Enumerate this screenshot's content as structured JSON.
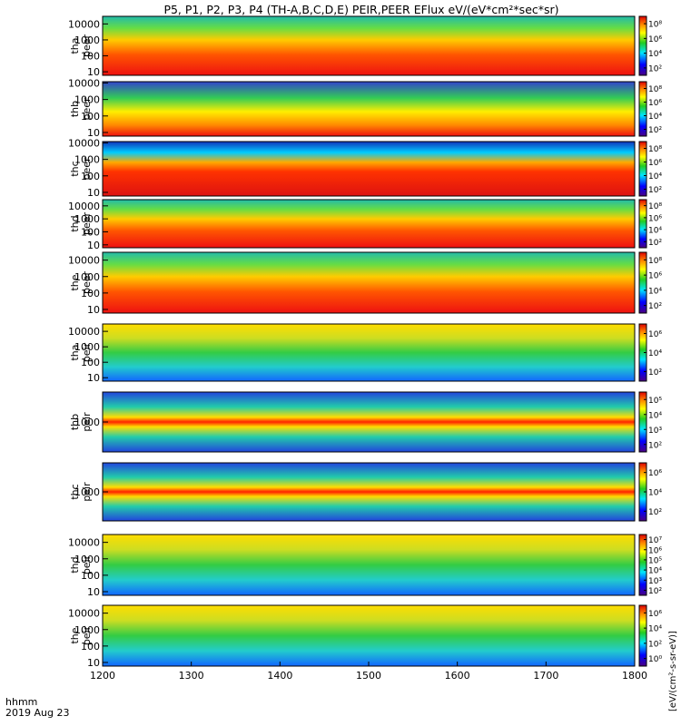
{
  "chart_data": {
    "type": "heatmap",
    "title": "P5, P1, P2, P3, P4 (TH-A,B,C,D,E) PEIR,PEER EFlux eV/(eV*cm²*sec*sr)",
    "x_axis": {
      "range": [
        1200,
        1800
      ],
      "ticks": [
        "1200",
        "1300",
        "1400",
        "1500",
        "1600",
        "1700",
        "1800"
      ],
      "label_line1": "hhmm",
      "label_line2": "2019 Aug 23"
    },
    "colorbar_unit_label": "[eV/(cm²-s-sr-eV)]",
    "panels": [
      {
        "probe": "tha",
        "species": "peer",
        "ylabel_1": "tha",
        "ylabel_2": "peer",
        "y_log": true,
        "y_range": [
          6,
          30000
        ],
        "y_ticks": [
          "10",
          "100",
          "1000",
          "10000"
        ],
        "colorbar_ticks": [
          "10²",
          "10⁴",
          "10⁶",
          "10⁸"
        ]
      },
      {
        "probe": "thb",
        "species": "peer",
        "ylabel_1": "thb",
        "ylabel_2": "peer",
        "y_log": true,
        "y_range": [
          6,
          12000
        ],
        "y_ticks": [
          "10",
          "100",
          "1000",
          "10000"
        ],
        "colorbar_ticks": [
          "10²",
          "10⁴",
          "10⁶",
          "10⁸"
        ]
      },
      {
        "probe": "thc",
        "species": "peer",
        "ylabel_1": "thc",
        "ylabel_2": "peer",
        "y_log": true,
        "y_range": [
          6,
          12000
        ],
        "y_ticks": [
          "10",
          "100",
          "1000",
          "10000"
        ],
        "colorbar_ticks": [
          "10²",
          "10⁴",
          "10⁶",
          "10⁸"
        ]
      },
      {
        "probe": "thd",
        "species": "peer",
        "ylabel_1": "thd",
        "ylabel_2": "peer",
        "y_log": true,
        "y_range": [
          6,
          30000
        ],
        "y_ticks": [
          "10",
          "100",
          "1000",
          "10000"
        ],
        "colorbar_ticks": [
          "10²",
          "10⁴",
          "10⁶",
          "10⁸"
        ]
      },
      {
        "probe": "the",
        "species": "peer",
        "ylabel_1": "the",
        "ylabel_2": "peer",
        "y_log": true,
        "y_range": [
          6,
          30000
        ],
        "y_ticks": [
          "10",
          "100",
          "1000",
          "10000"
        ],
        "colorbar_ticks": [
          "10²",
          "10⁴",
          "10⁶",
          "10⁸"
        ]
      },
      {
        "probe": "tha",
        "species": "peir",
        "ylabel_1": "tha",
        "ylabel_2": "peir",
        "y_log": true,
        "y_range": [
          6,
          30000
        ],
        "y_ticks": [
          "10",
          "100",
          "1000",
          "10000"
        ],
        "colorbar_ticks": [
          "10²",
          "10⁴",
          "10⁶"
        ]
      },
      {
        "probe": "thb",
        "species": "peir",
        "ylabel_1": "thb",
        "ylabel_2": "peir",
        "y_log": true,
        "y_range": [
          250,
          4000
        ],
        "y_ticks": [
          "1000"
        ],
        "colorbar_ticks": [
          "10²",
          "10³",
          "10⁴",
          "10⁵"
        ]
      },
      {
        "probe": "thc",
        "species": "peir",
        "ylabel_1": "thc",
        "ylabel_2": "peir",
        "y_log": true,
        "y_range": [
          250,
          4000
        ],
        "y_ticks": [
          "1000"
        ],
        "colorbar_ticks": [
          "10²",
          "10⁴",
          "10⁶"
        ]
      },
      {
        "probe": "thd",
        "species": "peir",
        "ylabel_1": "thd",
        "ylabel_2": "peir",
        "y_log": true,
        "y_range": [
          6,
          30000
        ],
        "y_ticks": [
          "10",
          "100",
          "1000",
          "10000"
        ],
        "colorbar_ticks": [
          "10²",
          "10³",
          "10⁴",
          "10⁵",
          "10⁶",
          "10⁷"
        ]
      },
      {
        "probe": "the",
        "species": "peir",
        "ylabel_1": "the",
        "ylabel_2": "peir",
        "y_log": true,
        "y_range": [
          6,
          30000
        ],
        "y_ticks": [
          "10",
          "100",
          "1000",
          "10000"
        ],
        "colorbar_ticks": [
          "10⁰",
          "10²",
          "10⁴",
          "10⁶"
        ]
      }
    ]
  }
}
